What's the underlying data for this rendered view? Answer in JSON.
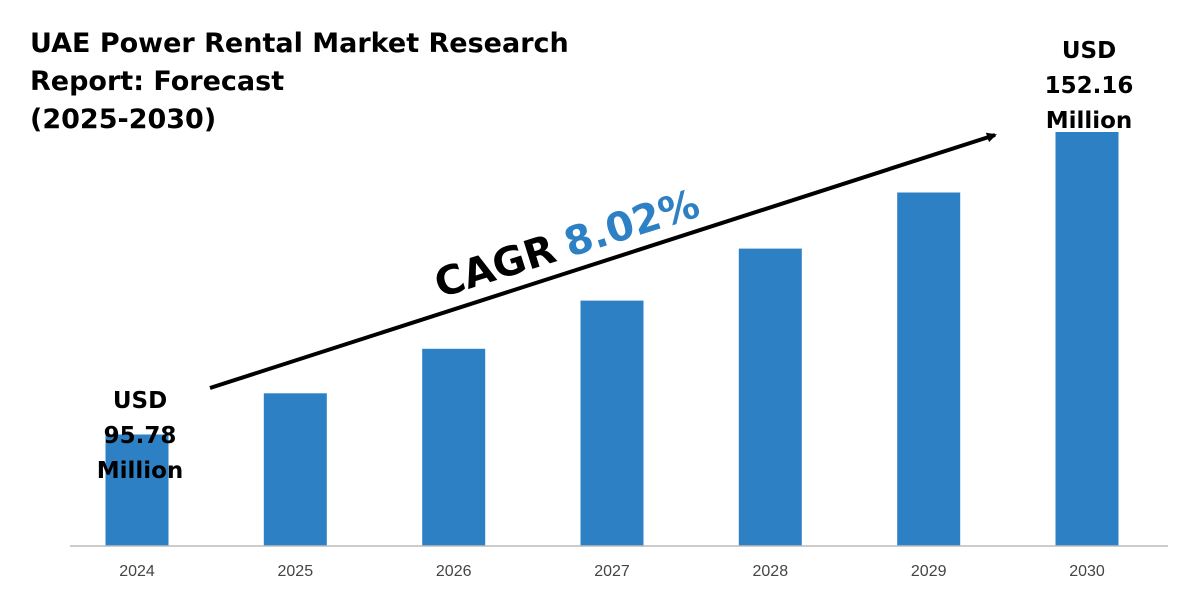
{
  "chart_data": {
    "type": "bar",
    "title_lines": [
      "UAE Power Rental Market Research",
      "Report: Forecast",
      "(2025-2030)"
    ],
    "categories": [
      "2024",
      "2025",
      "2026",
      "2027",
      "2028",
      "2029",
      "2030"
    ],
    "values": [
      95.78,
      103.46,
      111.76,
      120.73,
      130.42,
      140.88,
      152.16
    ],
    "units": "USD Million",
    "xlabel": "",
    "ylabel": "",
    "ylim": [
      75,
      160
    ],
    "grid": false,
    "annotations": {
      "start": {
        "lines": [
          "USD",
          "95.78",
          "Million"
        ]
      },
      "end": {
        "lines": [
          "USD",
          "152.16",
          "Million"
        ]
      },
      "cagr": {
        "label": "CAGR",
        "value": "8.02%"
      }
    },
    "colors": {
      "bar": "#2e80c4",
      "cagr_value": "#2e80c4",
      "text": "#000000",
      "tick": "#444444",
      "axis": "#bbbbbb"
    }
  }
}
